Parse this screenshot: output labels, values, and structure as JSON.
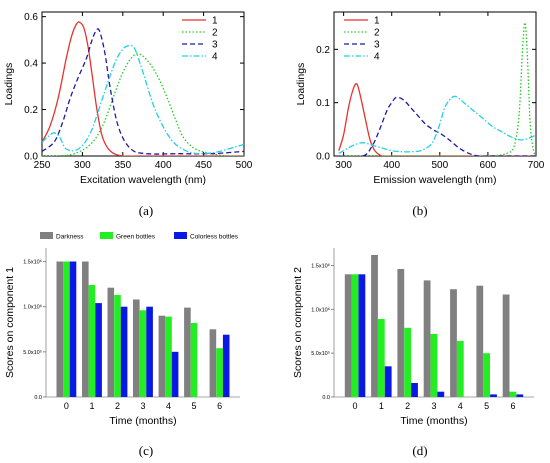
{
  "panel_labels": [
    "(a)",
    "(b)",
    "(c)",
    "(d)"
  ],
  "colors": {
    "series_1": "#e8322e",
    "series_2": "#22cc22",
    "series_3": "#1a1aa8",
    "series_4": "#22d0e6",
    "darkness": "#808080",
    "green_bottles": "#22ee22",
    "colorless_bottles": "#0a18e6"
  },
  "chart_data": [
    {
      "type": "line",
      "xlabel": "Excitation wavelength  (nm)",
      "ylabel": "Loadings",
      "xlim": [
        250,
        500
      ],
      "ylim": [
        0,
        0.62
      ],
      "xticks": [
        250,
        300,
        350,
        400,
        450,
        500
      ],
      "yticks": [
        0.0,
        0.2,
        0.4,
        0.6
      ],
      "ytick_labels": [
        "0.0",
        "0.2",
        "0.4",
        "0.6"
      ],
      "legend_position": "top-right",
      "series": [
        {
          "name": "1",
          "style": "solid",
          "x": [
            250,
            260,
            270,
            280,
            287,
            293,
            297,
            302,
            307,
            312,
            318,
            325,
            335,
            350,
            370,
            400,
            450,
            500
          ],
          "y": [
            0.06,
            0.13,
            0.25,
            0.42,
            0.52,
            0.57,
            0.575,
            0.55,
            0.47,
            0.35,
            0.2,
            0.08,
            0.02,
            0.0,
            0.0,
            0.0,
            0.0,
            0.0
          ]
        },
        {
          "name": "2",
          "style": "dotted",
          "x": [
            250,
            270,
            290,
            310,
            325,
            340,
            350,
            360,
            368,
            375,
            385,
            395,
            405,
            415,
            425,
            440,
            460,
            480,
            500
          ],
          "y": [
            0.0,
            0.0,
            0.01,
            0.05,
            0.13,
            0.27,
            0.36,
            0.42,
            0.44,
            0.43,
            0.39,
            0.33,
            0.25,
            0.16,
            0.08,
            0.03,
            0.01,
            0.0,
            0.0
          ]
        },
        {
          "name": "3",
          "style": "dashed",
          "x": [
            250,
            265,
            275,
            285,
            295,
            305,
            312,
            318,
            322,
            328,
            335,
            345,
            360,
            380,
            420,
            460,
            500
          ],
          "y": [
            0.02,
            0.06,
            0.14,
            0.25,
            0.34,
            0.42,
            0.5,
            0.545,
            0.53,
            0.44,
            0.28,
            0.12,
            0.03,
            0.01,
            0.01,
            0.01,
            0.02
          ]
        },
        {
          "name": "4",
          "style": "dashdot",
          "x": [
            250,
            258,
            265,
            272,
            280,
            295,
            310,
            325,
            340,
            350,
            358,
            365,
            375,
            390,
            410,
            430,
            450,
            470,
            490,
            500
          ],
          "y": [
            0.06,
            0.085,
            0.1,
            0.08,
            0.03,
            0.03,
            0.1,
            0.25,
            0.4,
            0.46,
            0.475,
            0.46,
            0.36,
            0.2,
            0.07,
            0.02,
            0.01,
            0.02,
            0.04,
            0.05
          ]
        }
      ]
    },
    {
      "type": "line",
      "xlabel": "Emission wavelength  (nm)",
      "ylabel": "Loadings",
      "xlim": [
        280,
        700
      ],
      "ylim": [
        0,
        0.27
      ],
      "xticks": [
        300,
        400,
        500,
        600,
        700
      ],
      "yticks": [
        0.0,
        0.1,
        0.2
      ],
      "ytick_labels": [
        "0.0",
        "0.1",
        "0.2"
      ],
      "legend_position": "top-left",
      "series": [
        {
          "name": "1",
          "style": "solid",
          "x": [
            290,
            300,
            310,
            318,
            325,
            330,
            338,
            345,
            355,
            365,
            380,
            400,
            500,
            600,
            700
          ],
          "y": [
            0.01,
            0.04,
            0.09,
            0.12,
            0.135,
            0.13,
            0.1,
            0.07,
            0.03,
            0.01,
            0.0,
            0.0,
            0.0,
            0.0,
            0.0
          ]
        },
        {
          "name": "2",
          "style": "dotted",
          "x": [
            290,
            400,
            500,
            600,
            640,
            655,
            665,
            672,
            677,
            682,
            688,
            695,
            700
          ],
          "y": [
            0.0,
            0.0,
            0.0,
            0.0,
            0.005,
            0.02,
            0.08,
            0.2,
            0.25,
            0.19,
            0.06,
            0.01,
            0.0
          ]
        },
        {
          "name": "3",
          "style": "dashed",
          "x": [
            290,
            340,
            360,
            375,
            390,
            400,
            410,
            425,
            440,
            455,
            470,
            485,
            495,
            505,
            520,
            540,
            560,
            580,
            600,
            620,
            640,
            660,
            680,
            700
          ],
          "y": [
            0.0,
            0.0,
            0.02,
            0.05,
            0.085,
            0.1,
            0.11,
            0.105,
            0.09,
            0.075,
            0.06,
            0.05,
            0.045,
            0.04,
            0.03,
            0.015,
            0.005,
            0.0,
            0.0,
            0.0,
            0.0,
            0.0,
            0.0,
            0.0
          ]
        },
        {
          "name": "4",
          "style": "dashdot",
          "x": [
            290,
            300,
            320,
            340,
            360,
            380,
            400,
            420,
            440,
            460,
            480,
            490,
            500,
            510,
            520,
            530,
            540,
            550,
            570,
            590,
            610,
            630,
            650,
            670,
            690,
            700
          ],
          "y": [
            0.005,
            0.01,
            0.02,
            0.025,
            0.02,
            0.015,
            0.01,
            0.008,
            0.008,
            0.01,
            0.02,
            0.035,
            0.06,
            0.09,
            0.105,
            0.112,
            0.108,
            0.1,
            0.085,
            0.07,
            0.055,
            0.045,
            0.035,
            0.03,
            0.035,
            0.04
          ]
        }
      ]
    },
    {
      "type": "bar",
      "xlabel": "Time (months)",
      "ylabel": "Scores on component 1",
      "categories": [
        "0",
        "1",
        "2",
        "3",
        "4",
        "5",
        "6"
      ],
      "ylim": [
        0,
        1.65
      ],
      "yticks": [
        0,
        0.5,
        1.0,
        1.5
      ],
      "ytick_labels": [
        "0.0",
        "5.0x10⁵",
        "1.0x10⁶",
        "1.5x10⁶"
      ],
      "legend_position": "top",
      "series": [
        {
          "name": "Darkness",
          "values": [
            1.5,
            1.5,
            1.21,
            1.08,
            0.9,
            0.99,
            0.75
          ]
        },
        {
          "name": "Green bottles",
          "values": [
            1.5,
            1.24,
            1.13,
            0.96,
            0.89,
            0.82,
            0.54
          ]
        },
        {
          "name": "Colorless bottles",
          "values": [
            1.5,
            1.04,
            1.0,
            1.0,
            0.5,
            null,
            0.69
          ]
        }
      ]
    },
    {
      "type": "bar",
      "xlabel": "Time (months)",
      "ylabel": "Scores on component 2",
      "categories": [
        "0",
        "1",
        "2",
        "3",
        "4",
        "5",
        "6"
      ],
      "ylim": [
        0,
        1.7
      ],
      "yticks": [
        0,
        0.5,
        1.0,
        1.5
      ],
      "ytick_labels": [
        "0.0",
        "5.0x10⁵",
        "1.0x10⁶",
        "1.5x10⁶"
      ],
      "series": [
        {
          "name": "Darkness",
          "values": [
            1.4,
            1.62,
            1.46,
            1.33,
            1.23,
            1.27,
            1.17
          ]
        },
        {
          "name": "Green bottles",
          "values": [
            1.4,
            0.89,
            0.79,
            0.72,
            0.64,
            0.5,
            0.06
          ]
        },
        {
          "name": "Colorless bottles",
          "values": [
            1.4,
            0.35,
            0.16,
            0.06,
            null,
            0.03,
            0.03
          ]
        }
      ]
    }
  ]
}
